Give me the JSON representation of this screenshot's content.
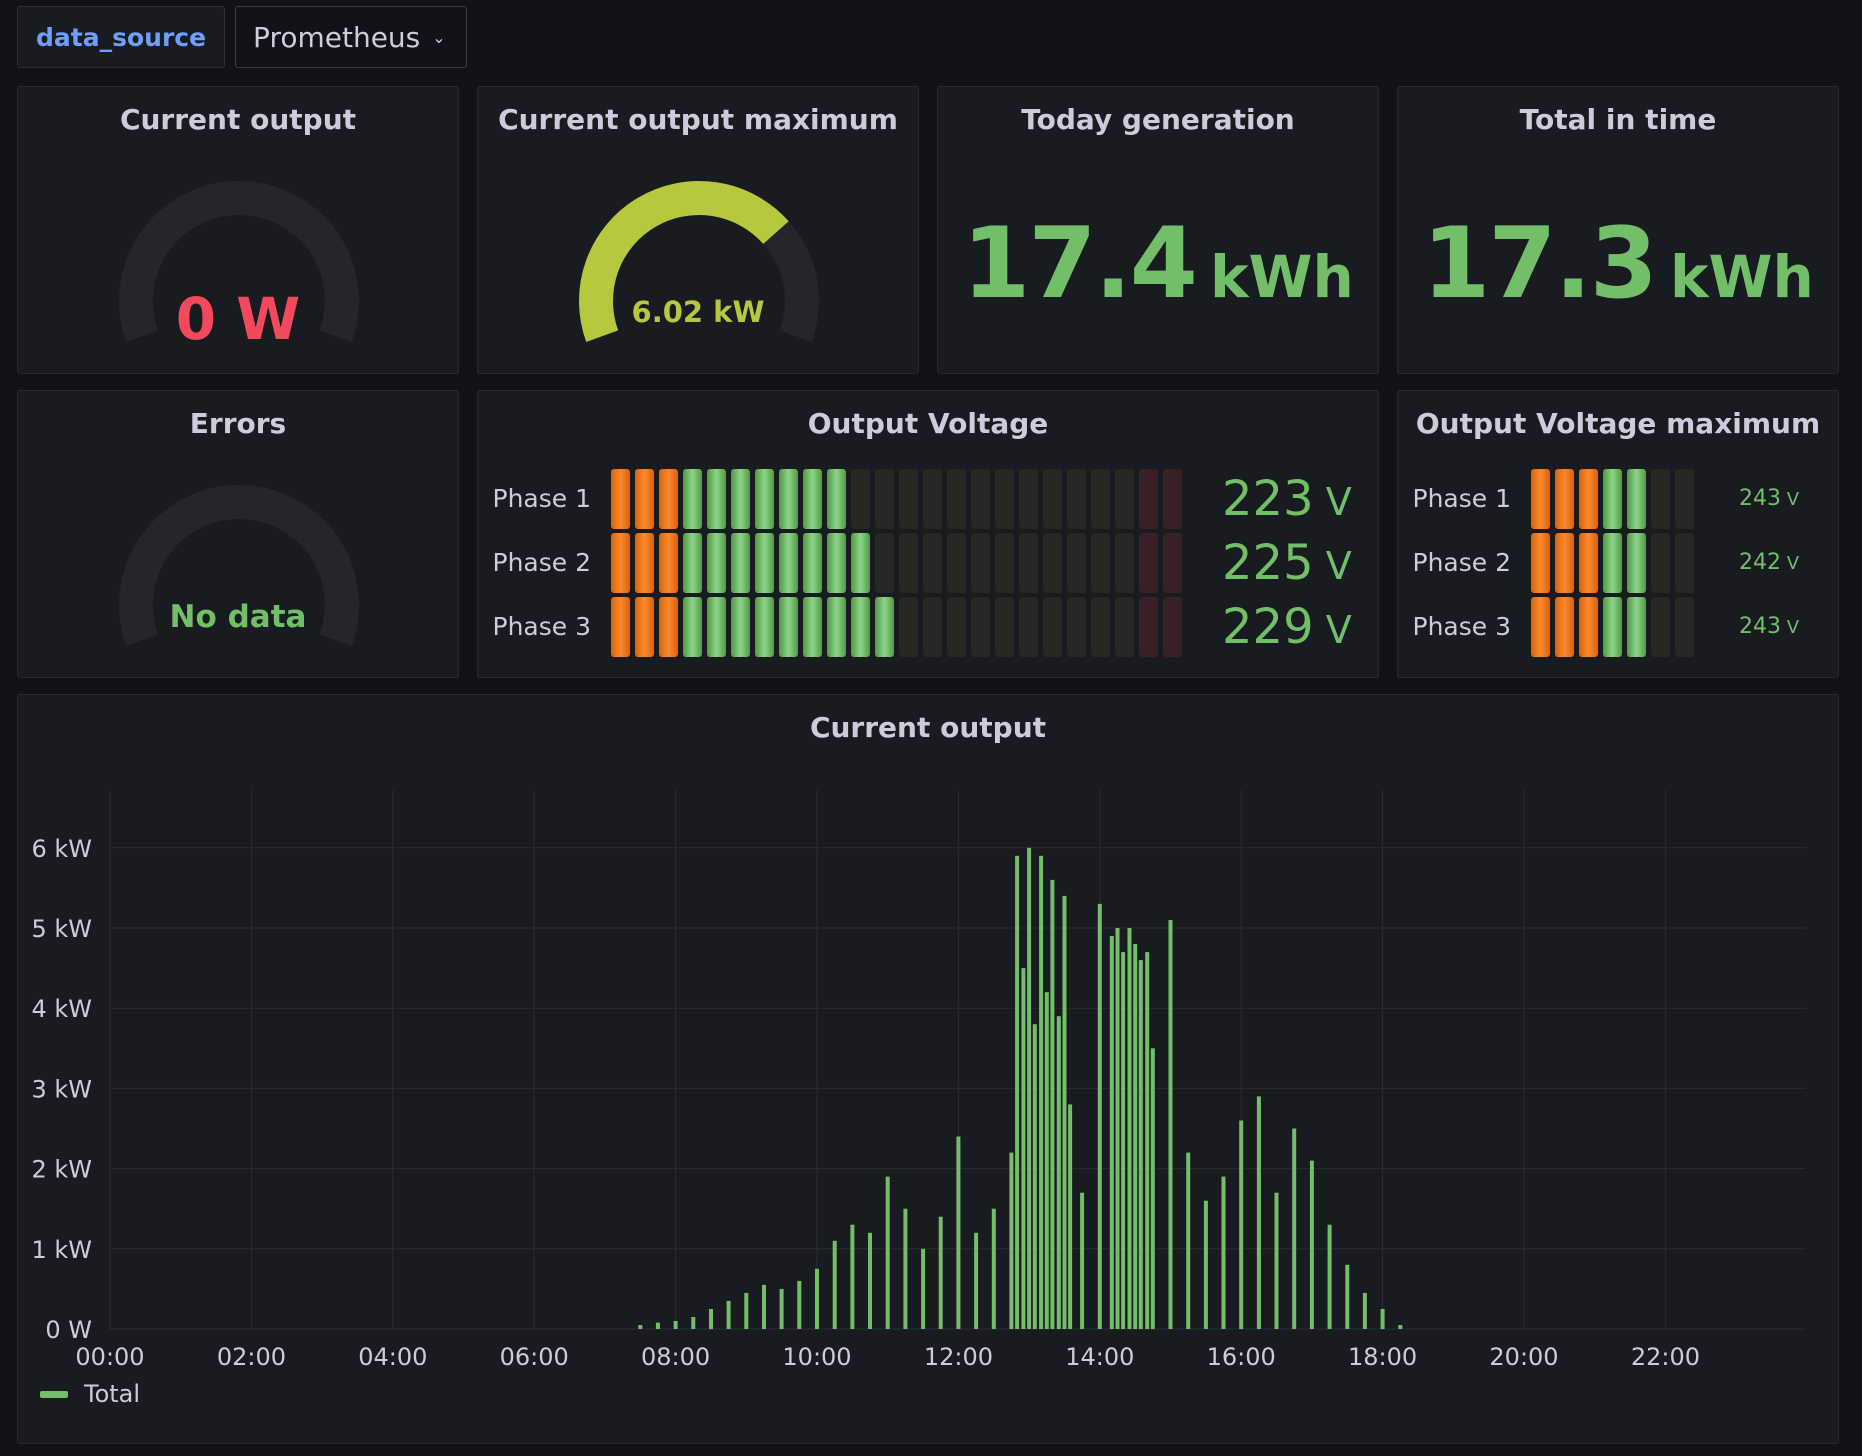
{
  "variables": {
    "label": "data_source",
    "selected": "Prometheus"
  },
  "panels": {
    "current_output": {
      "title": "Current output",
      "value": "0 W",
      "fraction": 0,
      "value_color": "#f2495c"
    },
    "current_output_max": {
      "title": "Current output maximum",
      "value": "6.02 kW",
      "fraction": 0.72,
      "value_color": "#b6c83e"
    },
    "today_generation": {
      "title": "Today generation",
      "value": "17.4",
      "unit": "kWh"
    },
    "total_in_time": {
      "title": "Total in time",
      "value": "17.3",
      "unit": "kWh"
    },
    "errors": {
      "title": "Errors",
      "value": "No data",
      "value_color": "#73bf69"
    },
    "output_voltage": {
      "title": "Output Voltage",
      "rows": [
        {
          "label": "Phase 1",
          "value": "223",
          "unit": "V",
          "lit": 10
        },
        {
          "label": "Phase 2",
          "value": "225",
          "unit": "V",
          "lit": 11
        },
        {
          "label": "Phase 3",
          "value": "229",
          "unit": "V",
          "lit": 12
        }
      ]
    },
    "output_voltage_max": {
      "title": "Output Voltage maximum",
      "rows": [
        {
          "label": "Phase 1",
          "value": "243",
          "unit": "V",
          "lit": 5
        },
        {
          "label": "Phase 2",
          "value": "242",
          "unit": "V",
          "lit": 5
        },
        {
          "label": "Phase 3",
          "value": "243",
          "unit": "V",
          "lit": 5
        }
      ]
    },
    "timeseries": {
      "title": "Current output",
      "legend": "Total"
    }
  },
  "colors": {
    "green": "#73bf69",
    "orange": "#ff780a",
    "red": "#f2495c",
    "yellow_green": "#b6c83e",
    "gauge_track": "#24262b"
  },
  "chart_data": {
    "type": "bar",
    "title": "Current output",
    "x_ticks": [
      "00:00",
      "02:00",
      "04:00",
      "06:00",
      "08:00",
      "10:00",
      "12:00",
      "14:00",
      "16:00",
      "18:00",
      "20:00",
      "22:00"
    ],
    "y_ticks": [
      "0 W",
      "1 kW",
      "2 kW",
      "3 kW",
      "4 kW",
      "5 kW",
      "6 kW"
    ],
    "ylim": [
      0,
      6.6
    ],
    "grid": true,
    "legend_position": "bottom-left",
    "series": [
      {
        "name": "Total",
        "unit": "kW",
        "x_hours": [
          7.5,
          7.75,
          8.0,
          8.25,
          8.5,
          8.75,
          9.0,
          9.25,
          9.5,
          9.75,
          10.0,
          10.25,
          10.5,
          10.75,
          11.0,
          11.25,
          11.5,
          11.75,
          12.0,
          12.25,
          12.5,
          12.75,
          12.83,
          12.92,
          13.0,
          13.08,
          13.17,
          13.25,
          13.33,
          13.42,
          13.5,
          13.58,
          13.75,
          14.0,
          14.17,
          14.25,
          14.33,
          14.42,
          14.5,
          14.58,
          14.67,
          14.75,
          15.0,
          15.25,
          15.5,
          15.75,
          16.0,
          16.25,
          16.5,
          16.75,
          17.0,
          17.25,
          17.5,
          17.75,
          18.0,
          18.25
        ],
        "values": [
          0.05,
          0.08,
          0.1,
          0.15,
          0.25,
          0.35,
          0.45,
          0.55,
          0.5,
          0.6,
          0.75,
          1.1,
          1.3,
          1.2,
          1.9,
          1.5,
          1.0,
          1.4,
          2.4,
          1.2,
          1.5,
          2.2,
          5.9,
          4.5,
          6.0,
          3.8,
          5.9,
          4.2,
          5.6,
          3.9,
          5.4,
          2.8,
          1.7,
          5.3,
          4.9,
          5.0,
          4.7,
          5.0,
          4.8,
          4.6,
          4.7,
          3.5,
          5.1,
          2.2,
          1.6,
          1.9,
          2.6,
          2.9,
          1.7,
          2.5,
          2.1,
          1.3,
          0.8,
          0.45,
          0.25,
          0.05
        ]
      }
    ]
  }
}
